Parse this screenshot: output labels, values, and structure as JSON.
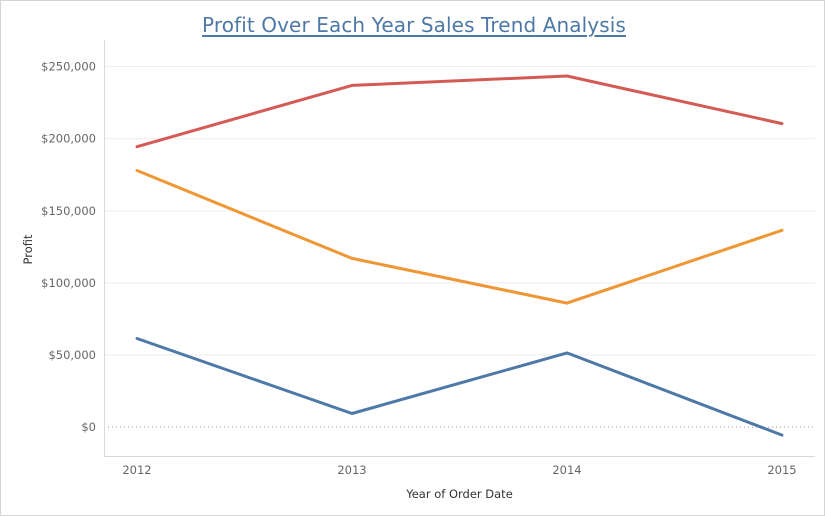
{
  "chart_data": {
    "type": "line",
    "title": "Profit Over Each Year Sales Trend Analysis",
    "xlabel": "Year of Order Date",
    "ylabel": "Profit",
    "x": [
      "2012",
      "2013",
      "2014",
      "2015"
    ],
    "ylim": [
      -20000,
      265000
    ],
    "yticks": [
      0,
      50000,
      100000,
      150000,
      200000,
      250000
    ],
    "ytick_labels": [
      "$0",
      "$50,000",
      "$100,000",
      "$150,000",
      "$200,000",
      "$250,000"
    ],
    "grid": true,
    "zero_line": "dotted",
    "legend": "none",
    "series": [
      {
        "color": "#d45b55",
        "values": [
          194500,
          237000,
          243500,
          210500
        ]
      },
      {
        "color": "#ee9734",
        "values": [
          178000,
          117000,
          86000,
          136500
        ]
      },
      {
        "color": "#4e79a7",
        "values": [
          61500,
          9500,
          51500,
          -5500
        ]
      }
    ]
  }
}
